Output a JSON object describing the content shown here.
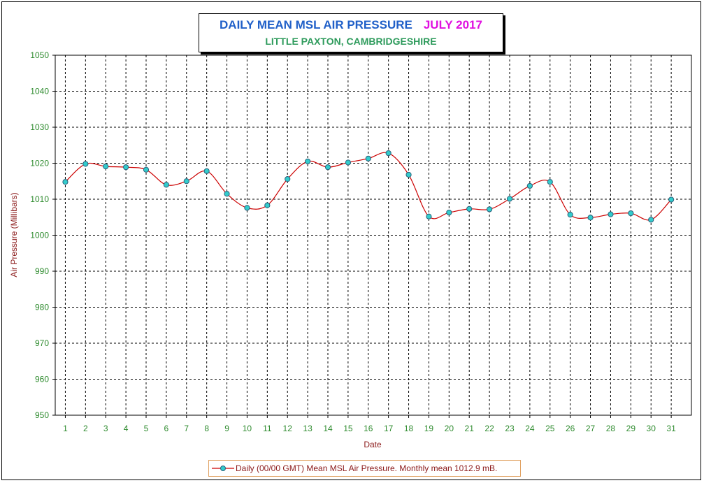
{
  "chart_data": {
    "type": "line",
    "title": "DAILY MEAN MSL AIR PRESSURE",
    "title_period": "JULY 2017",
    "subtitle": "LITTLE PAXTON, CAMBRIDGESHIRE",
    "xlabel": "Date",
    "ylabel": "Air Pressure (Millibars)",
    "ylim": [
      950,
      1050
    ],
    "yticks": [
      950,
      960,
      970,
      980,
      990,
      1000,
      1010,
      1020,
      1030,
      1040,
      1050
    ],
    "x": [
      1,
      2,
      3,
      4,
      5,
      6,
      7,
      8,
      9,
      10,
      11,
      12,
      13,
      14,
      15,
      16,
      17,
      18,
      19,
      20,
      21,
      22,
      23,
      24,
      25,
      26,
      27,
      28,
      29,
      30,
      31
    ],
    "series": [
      {
        "name": "Daily (00/00 GMT) Mean MSL Air Pressure. Monthly mean 1012.9 mB.",
        "values": [
          1014.8,
          1019.8,
          1019.1,
          1018.9,
          1018.2,
          1014.0,
          1015.0,
          1017.8,
          1011.5,
          1007.6,
          1008.3,
          1015.6,
          1020.5,
          1018.9,
          1020.2,
          1021.3,
          1022.8,
          1016.8,
          1005.2,
          1006.3,
          1007.3,
          1007.2,
          1010.1,
          1013.7,
          1014.8,
          1005.7,
          1004.9,
          1005.8,
          1006.1,
          1004.3,
          1009.9
        ],
        "color": "#cc0000",
        "marker_color": "#33cccc"
      }
    ],
    "grid": true,
    "legend_position": "bottom"
  }
}
